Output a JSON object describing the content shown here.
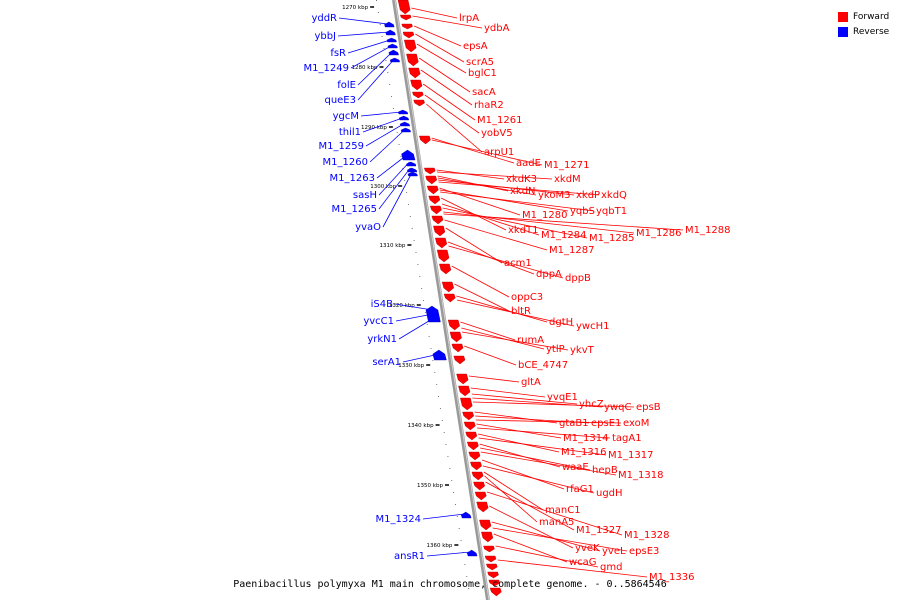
{
  "caption": "Paenibacillus polymyxa M1 main chromosome, complete genome. - 0..5864546",
  "legend": [
    {
      "label": "Forward",
      "color": "#ff0000"
    },
    {
      "label": "Reverse",
      "color": "#0000ff"
    }
  ],
  "colors": {
    "forward": "#ff0000",
    "reverse": "#0000ff",
    "backbone": "#999999"
  },
  "scale_labels": [
    "1270 kbp",
    "1280 kbp",
    "1290 kbp",
    "1300 kbp",
    "1310 kbp",
    "1320 kbp",
    "1330 kbp",
    "1340 kbp",
    "1350 kbp",
    "1360 kbp"
  ],
  "forward_labels": [
    "lrpA",
    "ydbA",
    "epsA",
    "scrA5",
    "bglC1",
    "sacA",
    "rhaR2",
    "M1_1261",
    "yobV5",
    "arpU1",
    "aadE",
    "M1_1271",
    "xkdK3",
    "xkdM",
    "xkdN",
    "ykoM3",
    "xkdP",
    "xkdQ",
    "M1_1280",
    "yqbS",
    "yqbT1",
    "xkdT1",
    "M1_1284",
    "M1_1285",
    "M1_1286",
    "M1_1288",
    "M1_1287",
    "acm1",
    "dppA",
    "dppB",
    "oppC3",
    "bltR",
    "dgtH",
    "ywcH1",
    "rumA",
    "ytlP",
    "ykvT",
    "bCE_4747",
    "gltA",
    "yvqE1",
    "yhcZ",
    "ywqC",
    "epsB",
    "gtaB1",
    "epsE1",
    "exoM",
    "M1_1314",
    "tagA1",
    "M1_1316",
    "M1_1317",
    "waaE",
    "hepB",
    "M1_1318",
    "rfaG1",
    "ugdH",
    "manC1",
    "manA5",
    "M1_1327",
    "M1_1328",
    "yveK",
    "yveL",
    "epsE3",
    "wcaG",
    "gmd",
    "M1_1336"
  ],
  "reverse_labels": [
    "yddR",
    "ybbJ",
    "fsR",
    "M1_1249",
    "folE",
    "queE3",
    "ygcM",
    "thil1",
    "M1_1259",
    "M1_1260",
    "M1_1263",
    "sasH",
    "M1_1265",
    "yvaO",
    "iS4B",
    "yvcC1",
    "yrkN1",
    "serA1",
    "M1_1324",
    "ansR1"
  ]
}
